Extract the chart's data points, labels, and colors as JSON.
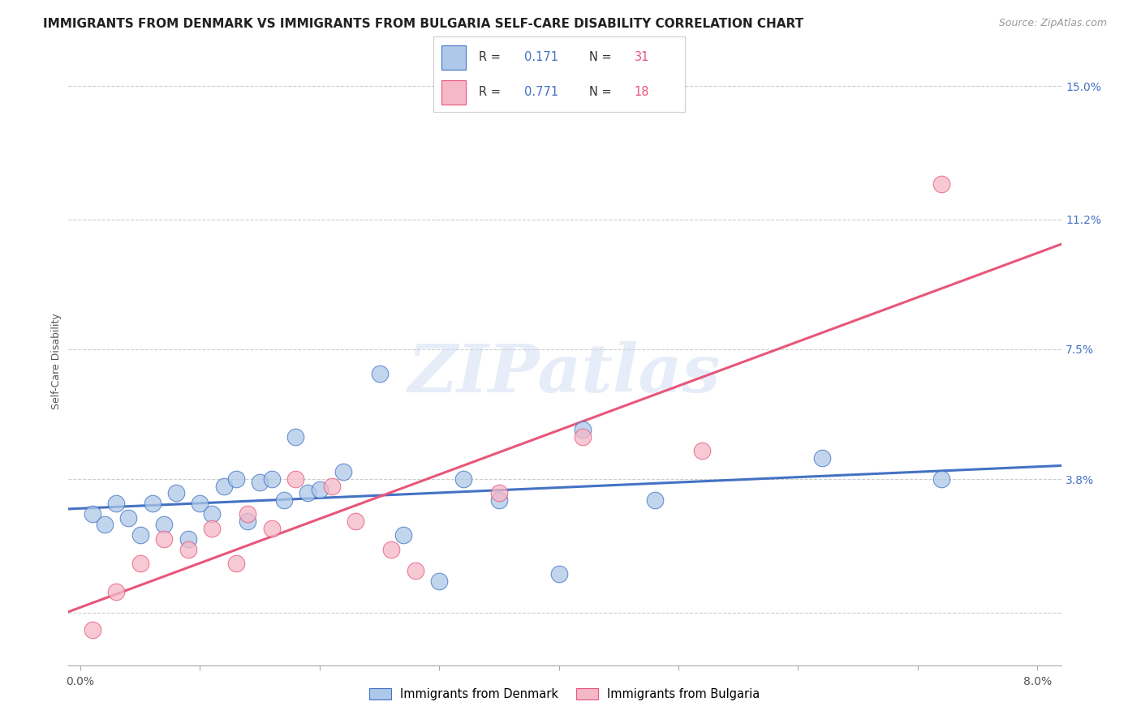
{
  "title": "IMMIGRANTS FROM DENMARK VS IMMIGRANTS FROM BULGARIA SELF-CARE DISABILITY CORRELATION CHART",
  "source": "Source: ZipAtlas.com",
  "ylabel": "Self-Care Disability",
  "r_denmark": 0.171,
  "n_denmark": 31,
  "r_bulgaria": 0.771,
  "n_bulgaria": 18,
  "xlim": [
    0.0,
    0.08
  ],
  "ylim": [
    0.0,
    0.15
  ],
  "yticks": [
    0.0,
    0.038,
    0.075,
    0.112,
    0.15
  ],
  "ytick_labels": [
    "",
    "3.8%",
    "7.5%",
    "11.2%",
    "15.0%"
  ],
  "color_denmark": "#adc8e8",
  "color_bulgaria": "#f5b8c8",
  "line_color_denmark": "#4472c4",
  "line_color_bulgaria": "#e8567a",
  "background_color": "#ffffff",
  "denmark_x": [
    0.001,
    0.002,
    0.003,
    0.004,
    0.005,
    0.006,
    0.007,
    0.008,
    0.009,
    0.01,
    0.011,
    0.012,
    0.013,
    0.014,
    0.015,
    0.016,
    0.017,
    0.018,
    0.019,
    0.02,
    0.022,
    0.025,
    0.027,
    0.03,
    0.032,
    0.035,
    0.04,
    0.042,
    0.048,
    0.062,
    0.072
  ],
  "denmark_y": [
    0.028,
    0.025,
    0.031,
    0.027,
    0.022,
    0.031,
    0.025,
    0.034,
    0.021,
    0.031,
    0.028,
    0.036,
    0.038,
    0.026,
    0.037,
    0.038,
    0.032,
    0.05,
    0.034,
    0.035,
    0.04,
    0.068,
    0.022,
    0.009,
    0.038,
    0.032,
    0.011,
    0.052,
    0.032,
    0.044,
    0.038
  ],
  "bulgaria_x": [
    0.001,
    0.003,
    0.005,
    0.007,
    0.009,
    0.011,
    0.013,
    0.014,
    0.016,
    0.018,
    0.021,
    0.023,
    0.026,
    0.028,
    0.035,
    0.042,
    0.052,
    0.072
  ],
  "bulgaria_y": [
    -0.005,
    0.006,
    0.014,
    0.021,
    0.018,
    0.024,
    0.014,
    0.028,
    0.024,
    0.038,
    0.036,
    0.026,
    0.018,
    0.012,
    0.034,
    0.05,
    0.046,
    0.122
  ],
  "watermark_text": "ZIPatlas",
  "title_fontsize": 11,
  "axis_fontsize": 9,
  "legend_fontsize": 10
}
